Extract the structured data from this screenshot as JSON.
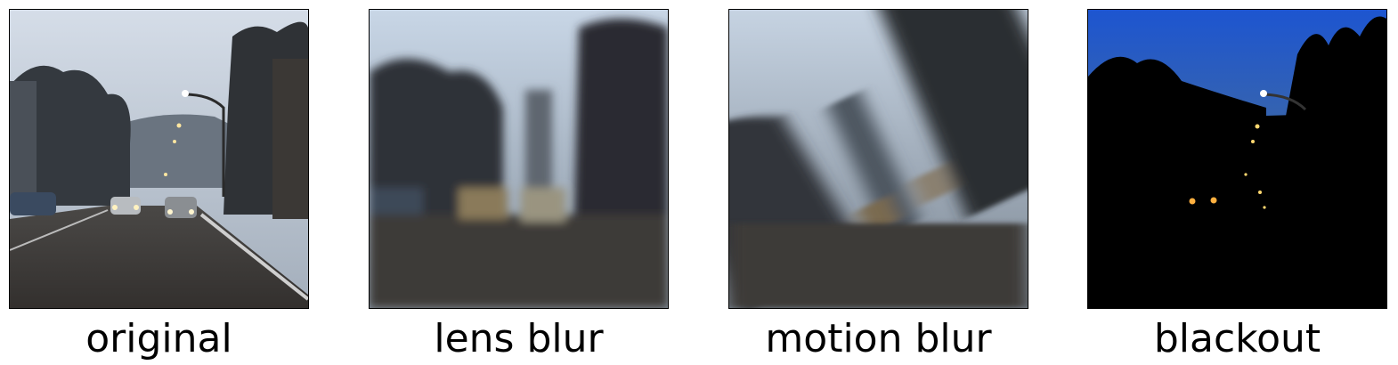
{
  "panels": [
    {
      "id": "original",
      "label": "original"
    },
    {
      "id": "lens",
      "label": "lens blur"
    },
    {
      "id": "motion",
      "label": "motion blur"
    },
    {
      "id": "blackout",
      "label": "blackout"
    }
  ],
  "colors": {
    "sky_top": "#cfd8e4",
    "sky_bottom": "#9eaab8",
    "road": "#3a3836",
    "trees": "#2a2a2a",
    "blackout_sky": "#1f56c8",
    "light": "#ffd27a"
  }
}
